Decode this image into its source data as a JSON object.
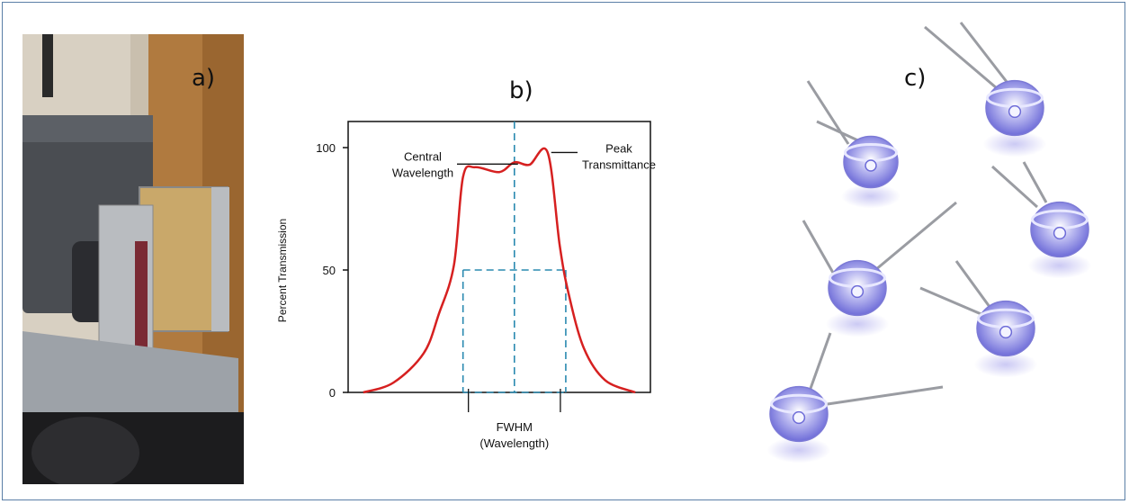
{
  "panels": {
    "a_label": "a)",
    "b_label": "b)",
    "c_label": "c)"
  },
  "chart_data": {
    "type": "line",
    "title": "",
    "ylabel": "Percent Transmission",
    "xlabel": "FWHM (Wavelength)",
    "yticks": [
      "100",
      "50",
      "0"
    ],
    "ylim": [
      0,
      110
    ],
    "xlim": [
      0,
      100
    ],
    "grid": false,
    "series": [
      {
        "color": "#d62020",
        "x": [
          5,
          15,
          25,
          30,
          35,
          38,
          42,
          50,
          55,
          60,
          66,
          70,
          73,
          78,
          85,
          95
        ],
        "y": [
          0,
          4,
          16,
          32,
          52,
          88,
          92,
          90,
          94,
          93,
          98,
          60,
          40,
          18,
          5,
          0
        ]
      }
    ],
    "guides": {
      "color": "#2a8ab0",
      "half_max_y": 50,
      "fwhm_x": [
        38,
        72
      ],
      "center_x": 55
    },
    "annotations": {
      "central_line1": "Central",
      "central_line2": "Wavelength",
      "peak_line1": "Peak",
      "peak_line2": "Transmittance",
      "fwhm_line1": "FWHM",
      "fwhm_line2": "(Wavelength)"
    }
  }
}
